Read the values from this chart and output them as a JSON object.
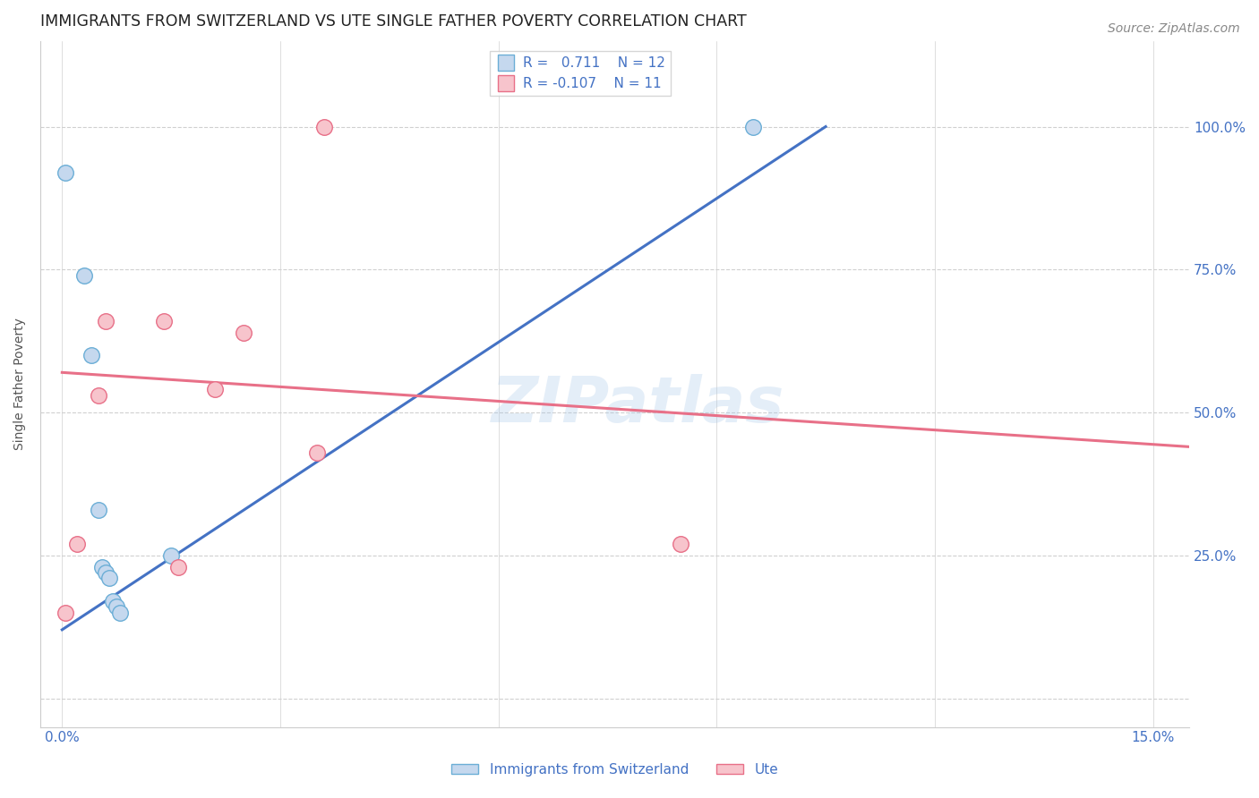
{
  "title": "IMMIGRANTS FROM SWITZERLAND VS UTE SINGLE FATHER POVERTY CORRELATION CHART",
  "source": "Source: ZipAtlas.com",
  "ylabel": "Single Father Poverty",
  "legend_blue_label": "Immigrants from Switzerland",
  "legend_pink_label": "Ute",
  "r_blue": "0.711",
  "n_blue": "12",
  "r_pink": "-0.107",
  "n_pink": "11",
  "x_ticks": [
    0.0,
    3.0,
    6.0,
    9.0,
    12.0,
    15.0
  ],
  "x_tick_labels": [
    "0.0%",
    "",
    "",
    "",
    "",
    "15.0%"
  ],
  "y_ticks": [
    0,
    25,
    50,
    75,
    100
  ],
  "y_tick_labels": [
    "",
    "25.0%",
    "50.0%",
    "75.0%",
    "100.0%"
  ],
  "xlim": [
    -0.3,
    15.5
  ],
  "ylim": [
    -5,
    115
  ],
  "blue_scatter": [
    [
      0.05,
      92.0
    ],
    [
      0.3,
      74.0
    ],
    [
      0.4,
      60.0
    ],
    [
      0.5,
      33.0
    ],
    [
      0.55,
      23.0
    ],
    [
      0.6,
      22.0
    ],
    [
      0.65,
      21.0
    ],
    [
      0.7,
      17.0
    ],
    [
      0.75,
      16.0
    ],
    [
      0.8,
      15.0
    ],
    [
      1.5,
      25.0
    ],
    [
      9.5,
      100.0
    ]
  ],
  "pink_scatter": [
    [
      0.05,
      15.0
    ],
    [
      0.2,
      27.0
    ],
    [
      0.5,
      53.0
    ],
    [
      0.6,
      66.0
    ],
    [
      1.4,
      66.0
    ],
    [
      2.1,
      54.0
    ],
    [
      2.5,
      64.0
    ],
    [
      3.5,
      43.0
    ],
    [
      3.6,
      100.0
    ],
    [
      1.6,
      23.0
    ],
    [
      8.5,
      27.0
    ]
  ],
  "blue_line_x": [
    0.0,
    10.5
  ],
  "blue_line_y": [
    12.0,
    100.0
  ],
  "pink_line_x": [
    0.0,
    15.5
  ],
  "pink_line_y": [
    57.0,
    44.0
  ],
  "watermark": "ZIPatlas",
  "dot_size": 160,
  "blue_color": "#c5d8ee",
  "blue_border": "#6baed6",
  "pink_color": "#f7c4cc",
  "pink_border": "#e87088",
  "blue_line_color": "#4472c4",
  "pink_line_color": "#e87088",
  "title_fontsize": 12.5,
  "axis_label_fontsize": 10,
  "tick_fontsize": 11,
  "source_fontsize": 10,
  "legend_fontsize": 11,
  "watermark_fontsize": 52,
  "background_color": "#ffffff",
  "grid_color": "#d0d0d0",
  "tick_color": "#4472c4",
  "right_tick_color": "#4472c4"
}
